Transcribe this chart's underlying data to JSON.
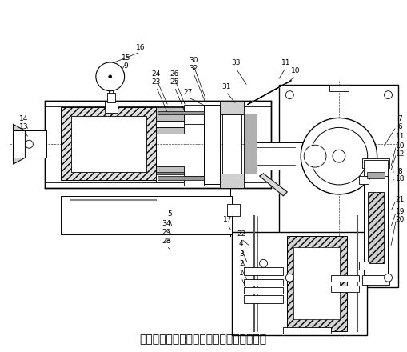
{
  "title": "图为燃气表电机阀气密性检测装置的俯视图",
  "title_fontsize": 10,
  "bg_color": "#ffffff",
  "figsize": [
    5.09,
    4.4
  ],
  "dpi": 100
}
